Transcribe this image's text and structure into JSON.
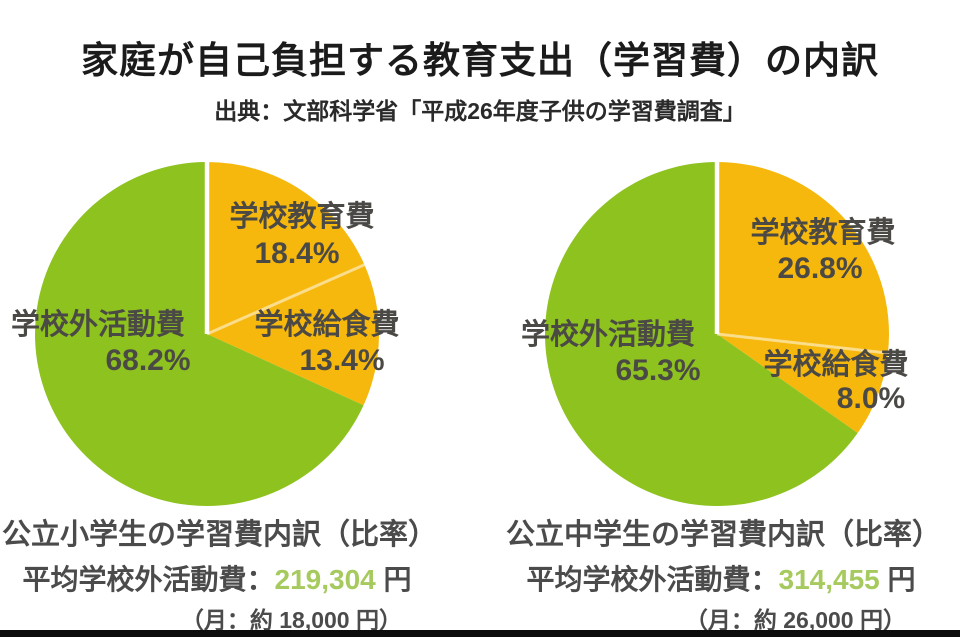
{
  "header": {
    "title": "家庭が自己負担する教育支出（学習費）の内訳",
    "source": "出典：文部科学省「平成26年度子供の学習費調査」"
  },
  "colors": {
    "green": "#8dc21f",
    "orange": "#f6b80c",
    "green_number_text": "#a6ca5e",
    "label_gray": "#4b4945",
    "title_black": "#1b1b1b",
    "bottom_bar": "#0c0c0c"
  },
  "charts": {
    "elementary": {
      "slices": [
        {
          "label": "学校教育費",
          "pct": "18.4%"
        },
        {
          "label": "学校給食費",
          "pct": "13.4%"
        },
        {
          "label": "学校外活動費",
          "pct": "68.2%"
        }
      ],
      "caption_title": "公立小学生の学習費内訳（比率）",
      "avg_label": "平均学校外活動費：",
      "avg_value": "219,304",
      "avg_unit": " 円",
      "monthly_note": "（月：約 18,000 円）"
    },
    "junior_high": {
      "slices": [
        {
          "label": "学校教育費",
          "pct": "26.8%"
        },
        {
          "label": "学校給食費",
          "pct": "8.0%"
        },
        {
          "label": "学校外活動費",
          "pct": "65.3%"
        }
      ],
      "caption_title": "公立中学生の学習費内訳（比率）",
      "avg_label": "平均学校外活動費：",
      "avg_value": "314,455",
      "avg_unit": " 円",
      "monthly_note": "（月：約 26,000 円）"
    }
  },
  "chart_data": [
    {
      "type": "pie",
      "title": "公立小学生の学習費内訳（比率）",
      "labels": [
        "学校教育費",
        "学校給食費",
        "学校外活動費"
      ],
      "values": [
        18.4,
        13.4,
        68.2
      ],
      "colors": [
        "#f6b80c",
        "#f6b80c",
        "#8dc21f"
      ],
      "start_angle_deg": 0,
      "direction": "clockwise",
      "annotations": [
        "平均学校外活動費：219,304 円",
        "（月：約 18,000 円）"
      ]
    },
    {
      "type": "pie",
      "title": "公立中学生の学習費内訳（比率）",
      "labels": [
        "学校教育費",
        "学校給食費",
        "学校外活動費"
      ],
      "values": [
        26.8,
        8.0,
        65.3
      ],
      "colors": [
        "#f6b80c",
        "#f6b80c",
        "#8dc21f"
      ],
      "start_angle_deg": 0,
      "direction": "clockwise",
      "annotations": [
        "平均学校外活動費：314,455 円",
        "（月：約 26,000 円）"
      ]
    }
  ]
}
